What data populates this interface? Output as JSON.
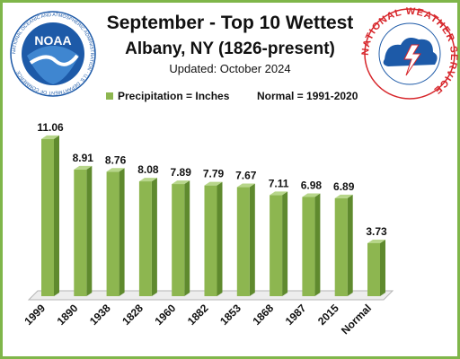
{
  "titles": {
    "line1": "September - Top 10 Wettest",
    "line2": "Albany, NY (1826-present)",
    "line3": "Updated: October 2024"
  },
  "legend": {
    "series_label": "Precipitation = Inches",
    "normal_label": "Normal = 1991-2020"
  },
  "logos": {
    "noaa_text": "NOAA",
    "noaa_ring_text": "NATIONAL OCEANIC AND ATMOSPHERIC ADMINISTRATION · U.S. DEPARTMENT OF COMMERCE",
    "nws_ring_text": "NATIONAL WEATHER SERVICE"
  },
  "colors": {
    "bar": "#8db650",
    "bar_side": "#5f8a2e",
    "bar_top": "#b7d68a",
    "border": "#7fb64a",
    "noaa_blue": "#1d5aa8",
    "nws_red": "#d7262b"
  },
  "chart_data": {
    "type": "bar",
    "title": "September - Top 10 Wettest",
    "subtitle": "Albany, NY (1826-present)",
    "categories": [
      "1999",
      "1890",
      "1938",
      "1828",
      "1960",
      "1882",
      "1853",
      "1868",
      "1987",
      "2015",
      "Normal"
    ],
    "values": [
      11.06,
      8.91,
      8.76,
      8.08,
      7.89,
      7.79,
      7.67,
      7.11,
      6.98,
      6.89,
      3.73
    ],
    "value_labels": [
      "11.06",
      "8.91",
      "8.76",
      "8.08",
      "7.89",
      "7.79",
      "7.67",
      "7.11",
      "6.98",
      "6.89",
      "3.73"
    ],
    "ylim": [
      0,
      12
    ],
    "grid": false,
    "legend_position": "top-left"
  }
}
